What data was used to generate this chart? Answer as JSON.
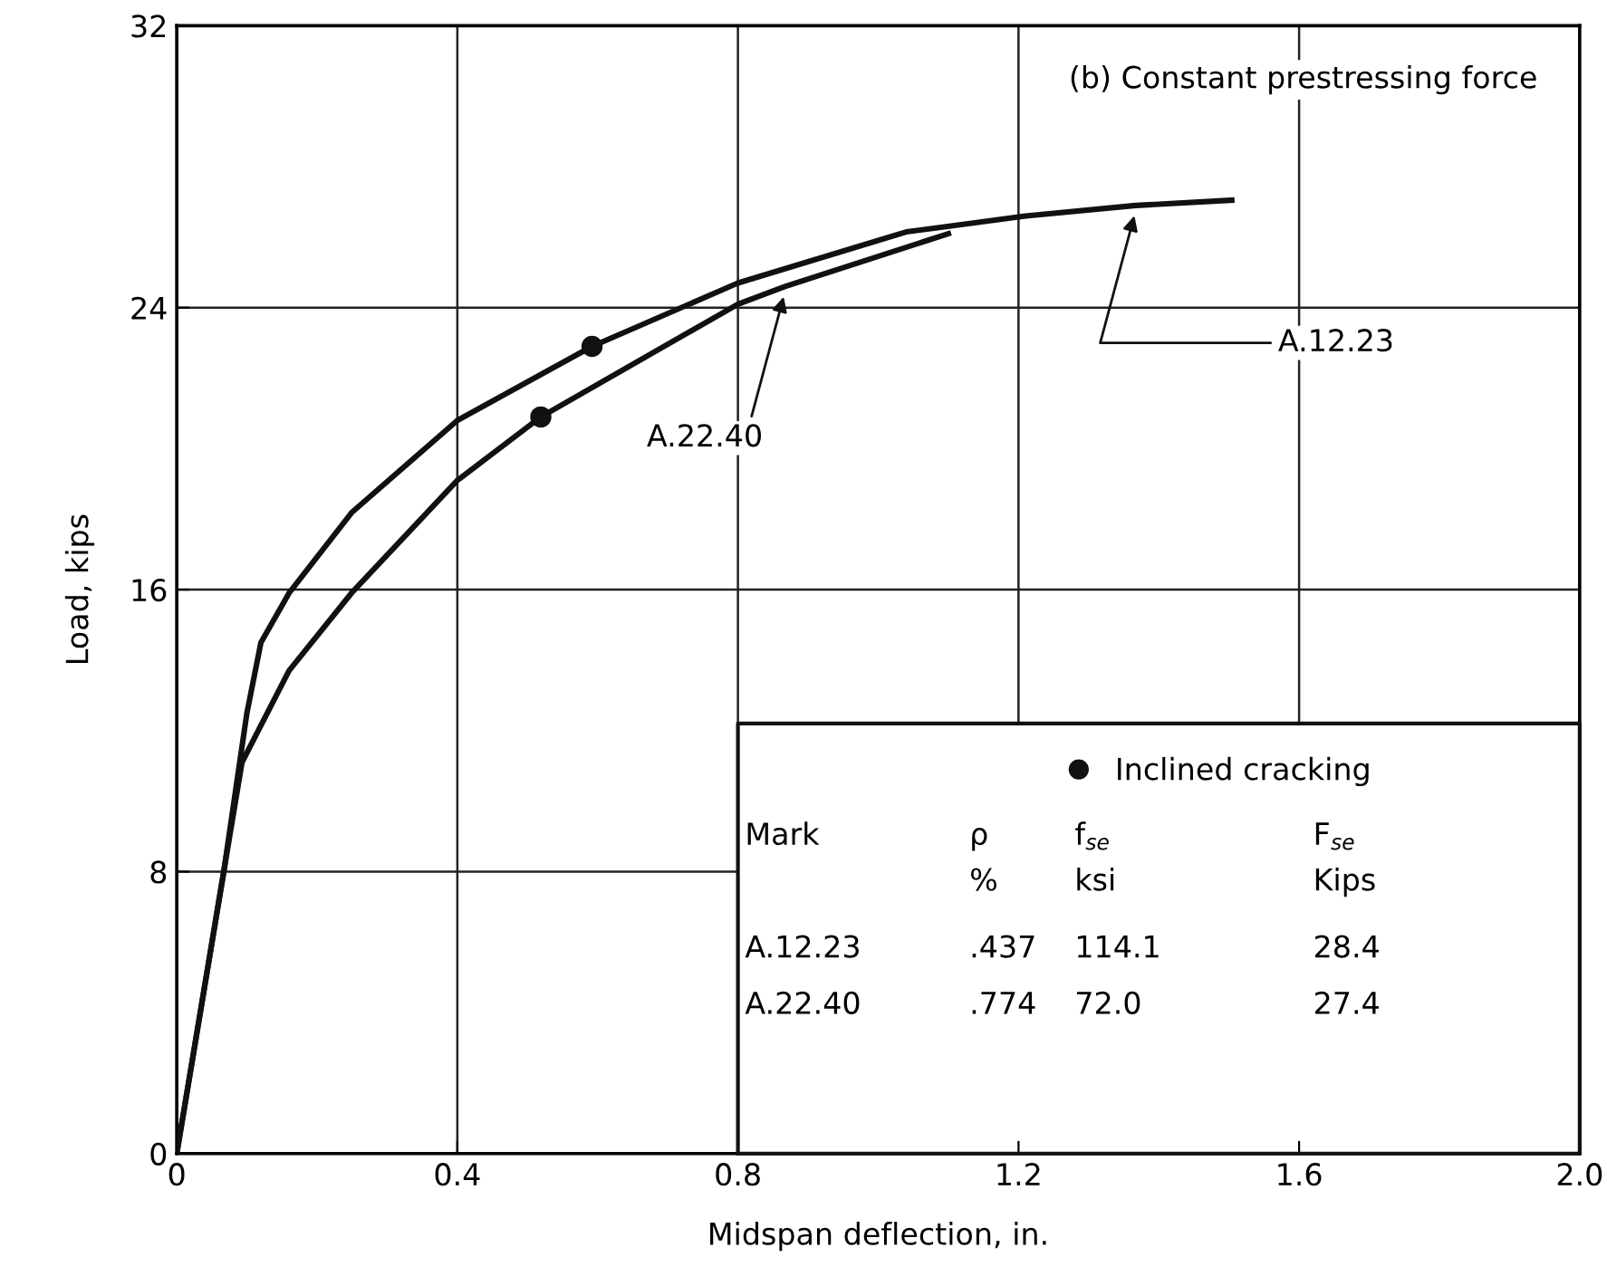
{
  "chart_data": {
    "type": "line",
    "title": "(b) Constant prestressing force",
    "xlabel": "Midspan deflection, in.",
    "ylabel": "Load, kips",
    "xlim": [
      0,
      2.0
    ],
    "xticks": [
      0,
      0.4,
      0.8,
      1.2,
      1.6,
      {
        "value": 2,
        "label": "2.0"
      }
    ],
    "ylim": [
      0,
      32
    ],
    "yticks": [
      0,
      8,
      16,
      24,
      32
    ],
    "grid": true,
    "legend": "bottom right",
    "marker": "none",
    "line_style": "solid",
    "series": [
      {
        "name": "A.12.23",
        "color": "#111111",
        "x": [
          0,
          0.067,
          0.1,
          0.12,
          0.16,
          0.25,
          0.4,
          0.592,
          0.8,
          1.04,
          1.21,
          1.367,
          1.504
        ],
        "values": [
          0,
          8,
          12.5,
          14.5,
          15.9,
          18.2,
          20.8,
          22.9,
          24.7,
          26.15,
          26.6,
          26.9,
          27.05
        ]
      },
      {
        "name": "A.22.40",
        "color": "#111111",
        "x": [
          0,
          0.067,
          0.093,
          0.16,
          0.249,
          0.4,
          0.519,
          0.8,
          0.867,
          1.1
        ],
        "values": [
          0,
          8,
          11.1,
          13.7,
          15.9,
          19.1,
          20.9,
          24.1,
          24.6,
          26.1
        ]
      },
      {
        "name": "Inclined cracking",
        "type": "scatter",
        "marker": "circle",
        "color": "#111111",
        "x": [
          0.519,
          0.592
        ],
        "values": [
          20.9,
          22.9
        ]
      }
    ],
    "annotations": [
      "Mark",
      "ρ",
      "f$_{se}$",
      "F$_{se}$",
      "%",
      "ksi",
      "Kips",
      "A.12.23",
      ".437",
      "114.1",
      "28.4",
      "A.22.40",
      ".774",
      "72.0",
      "27.4"
    ]
  }
}
